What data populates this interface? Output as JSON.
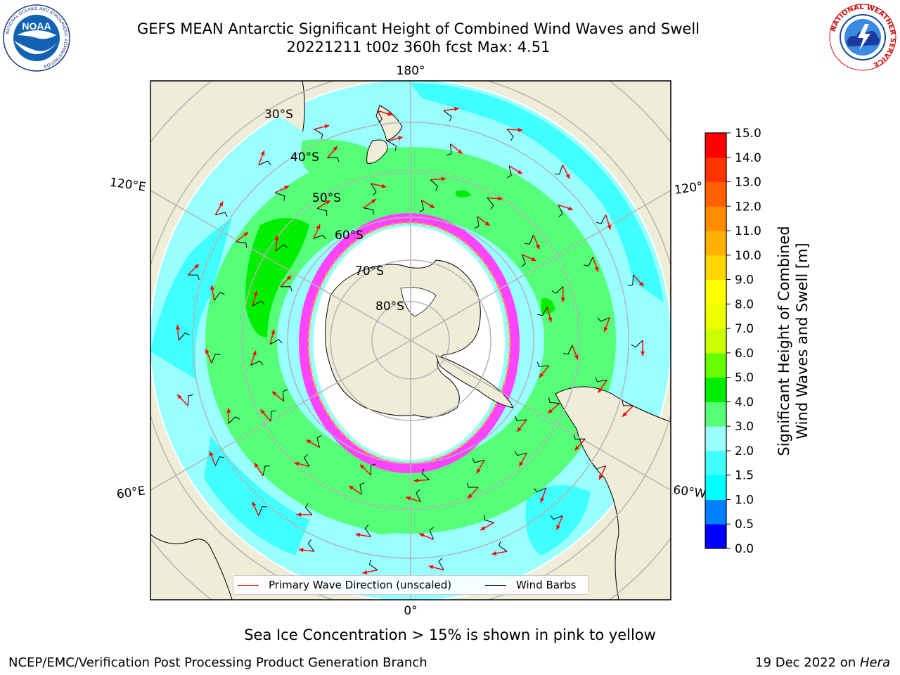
{
  "header": {
    "title_line1": "GEFS MEAN Antarctic Significant Height of Combined Wind Waves and Swell",
    "title_line2": "20221211 t00z 360h fcst   Max: 4.51"
  },
  "logos": {
    "noaa": {
      "text": "NOAA",
      "ring_text": "NATIONAL OCEANIC AND ATMOSPHERIC ADMINISTRATION",
      "bottom_text": "U.S. DEPARTMENT OF COMMERCE"
    },
    "nws": {
      "ring_text": "NATIONAL WEATHER SERVICE"
    }
  },
  "map": {
    "projection": "south-polar-stereographic",
    "latitude_labels": [
      "30°S",
      "40°S",
      "50°S",
      "60°S",
      "70°S",
      "80°S"
    ],
    "longitude_labels": [
      "180°",
      "120°E",
      "120°",
      "60°E",
      "0°",
      "60°W"
    ],
    "legend": {
      "wave_label": "Primary Wave Direction (unscaled)",
      "wave_color": "#ff0000",
      "wind_label": "Wind Barbs",
      "wind_color": "#000000"
    }
  },
  "chart_data": {
    "type": "heatmap",
    "variable": "Significant Height of Combined Wind Waves and Swell",
    "units": "m",
    "max_value": 4.51,
    "colorbar": {
      "label_line1": "Significant Height of Combined",
      "label_line2": "Wind Waves and Swell [m]",
      "ticks": [
        "0.0",
        "0.5",
        "1.0",
        "1.5",
        "2.0",
        "3.0",
        "4.0",
        "5.0",
        "6.0",
        "7.0",
        "8.0",
        "9.0",
        "10.0",
        "11.0",
        "12.0",
        "13.0",
        "14.0",
        "15.0"
      ],
      "colors": [
        "#0000ff",
        "#0080ff",
        "#00ffff",
        "#40ffff",
        "#99ffff",
        "#55ff77",
        "#00ee00",
        "#66ff00",
        "#ccff00",
        "#eeff00",
        "#ffff00",
        "#ffd700",
        "#ffb000",
        "#ff8c00",
        "#ff6000",
        "#ff3300",
        "#ff0000"
      ]
    },
    "land_color": "#efecd8",
    "sea_ice_color": "#ff44ff"
  },
  "footnote": "Sea Ice Concentration > 15% is shown in pink to yellow",
  "credits": {
    "left": "NCEP/EMC/Verification Post Processing Product Generation Branch",
    "right_prefix": "19 Dec 2022 on ",
    "right_italic": "Hera"
  }
}
